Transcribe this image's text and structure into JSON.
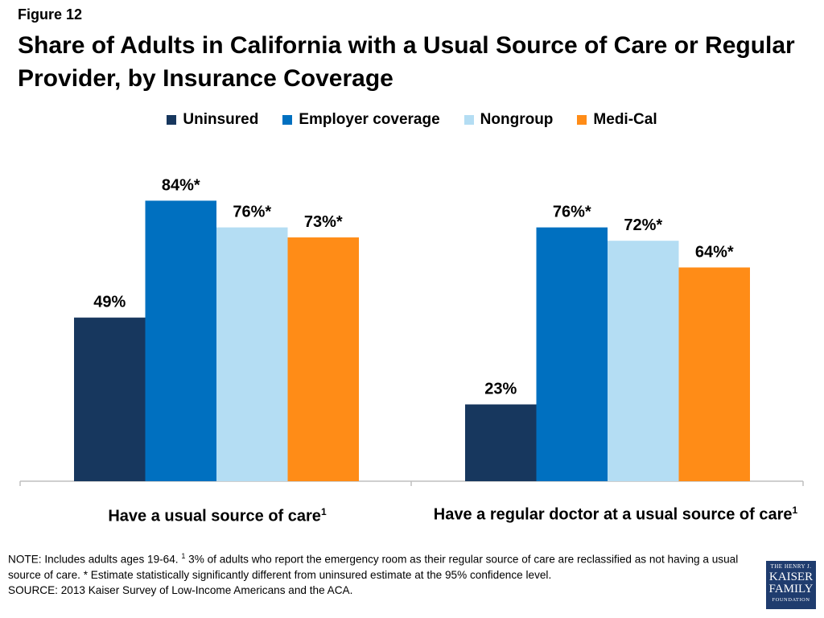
{
  "figure_label": "Figure 12",
  "title": "Share of Adults in California with a Usual Source of Care or Regular Provider, by Insurance Coverage",
  "chart_data": {
    "type": "bar",
    "categories": [
      "Have a usual source of care",
      "Have a regular doctor at a usual source of care"
    ],
    "category_superscripts": [
      "1",
      "1"
    ],
    "series": [
      {
        "name": "Uninsured",
        "color": "#17375e",
        "values": [
          49,
          23
        ],
        "labels": [
          "49%",
          "23%"
        ]
      },
      {
        "name": "Employer coverage",
        "color": "#0070c0",
        "values": [
          84,
          76
        ],
        "labels": [
          "84%*",
          "76%*"
        ]
      },
      {
        "name": "Nongroup",
        "color": "#b4ddf3",
        "values": [
          76,
          72
        ],
        "labels": [
          "76%*",
          "72%*"
        ]
      },
      {
        "name": "Medi-Cal",
        "color": "#ff8c17",
        "values": [
          73,
          64
        ],
        "labels": [
          "73%*",
          "64%*"
        ]
      }
    ],
    "ylim": [
      0,
      100
    ],
    "legend_position": "top"
  },
  "note": {
    "prefix": "NOTE: Includes adults ages 19-64. ",
    "sup": "1",
    "rest": " 3% of adults who report the emergency room as their regular source of care are reclassified as not having a usual source of care. * Estimate statistically significantly different from uninsured estimate  at the 95% confidence level.",
    "source": "SOURCE: 2013 Kaiser Survey of Low-Income Americans and the ACA."
  },
  "logo": {
    "line1": "THE HENRY J.",
    "line2": "KAISER",
    "line3": "FAMILY",
    "line4": "FOUNDATION"
  }
}
